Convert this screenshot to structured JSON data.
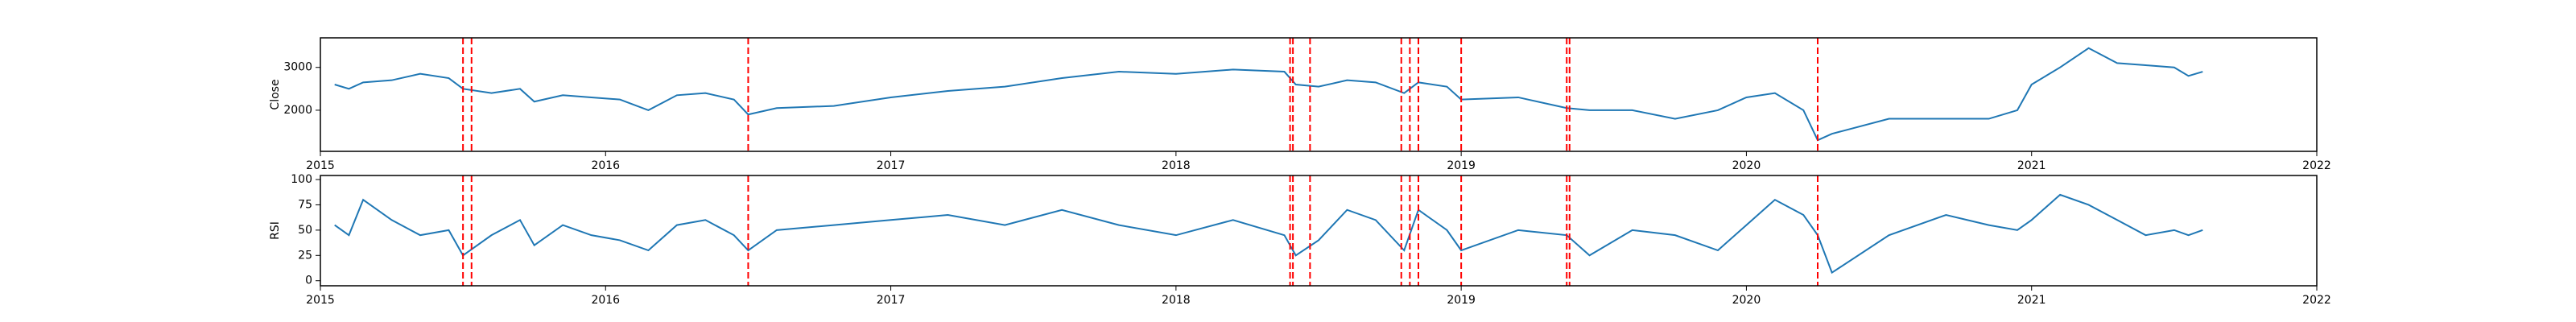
{
  "chart_data": [
    {
      "type": "line",
      "y_label": "Close",
      "x": [
        2015.05,
        2015.1,
        2015.15,
        2015.25,
        2015.35,
        2015.45,
        2015.5,
        2015.6,
        2015.7,
        2015.75,
        2015.85,
        2015.95,
        2016.05,
        2016.15,
        2016.25,
        2016.35,
        2016.45,
        2016.5,
        2016.6,
        2016.8,
        2017.0,
        2017.2,
        2017.4,
        2017.6,
        2017.8,
        2018.0,
        2018.2,
        2018.38,
        2018.42,
        2018.5,
        2018.6,
        2018.7,
        2018.8,
        2018.85,
        2018.95,
        2019.0,
        2019.2,
        2019.37,
        2019.45,
        2019.6,
        2019.75,
        2019.9,
        2020.0,
        2020.1,
        2020.2,
        2020.25,
        2020.3,
        2020.5,
        2020.7,
        2020.85,
        2020.95,
        2021.0,
        2021.1,
        2021.2,
        2021.3,
        2021.4,
        2021.5,
        2021.55,
        2021.6
      ],
      "series": [
        {
          "color": "#1f77b4",
          "values": [
            2600,
            2500,
            2650,
            2700,
            2850,
            2750,
            2500,
            2400,
            2500,
            2200,
            2350,
            2300,
            2250,
            2000,
            2350,
            2400,
            2250,
            1900,
            2050,
            2100,
            2300,
            2450,
            2550,
            2750,
            2900,
            2850,
            2950,
            2900,
            2600,
            2550,
            2700,
            2650,
            2400,
            2650,
            2550,
            2250,
            2300,
            2050,
            2000,
            2000,
            1800,
            2000,
            2300,
            2400,
            2000,
            1300,
            1450,
            1800,
            1800,
            1800,
            2000,
            2600,
            3000,
            3450,
            3100,
            3050,
            3000,
            2800,
            2900
          ]
        }
      ],
      "vlines": {
        "x": [
          2015.5,
          2015.53,
          2016.5,
          2018.4,
          2018.41,
          2018.47,
          2018.79,
          2018.82,
          2018.85,
          2019.0,
          2019.37,
          2019.38,
          2020.25
        ],
        "color": "red"
      },
      "xlim": [
        2015,
        2022
      ],
      "xticks": [
        2015,
        2016,
        2017,
        2018,
        2019,
        2020,
        2021,
        2022
      ],
      "ylim": [
        1040,
        3690
      ],
      "yticks": [
        2000,
        3000
      ]
    },
    {
      "type": "line",
      "y_label": "RSI",
      "x": [
        2015.05,
        2015.1,
        2015.15,
        2015.25,
        2015.35,
        2015.45,
        2015.5,
        2015.6,
        2015.7,
        2015.75,
        2015.85,
        2015.95,
        2016.05,
        2016.15,
        2016.25,
        2016.35,
        2016.45,
        2016.5,
        2016.6,
        2016.8,
        2017.0,
        2017.2,
        2017.4,
        2017.6,
        2017.8,
        2018.0,
        2018.2,
        2018.38,
        2018.42,
        2018.5,
        2018.6,
        2018.7,
        2018.8,
        2018.85,
        2018.95,
        2019.0,
        2019.2,
        2019.37,
        2019.45,
        2019.6,
        2019.75,
        2019.9,
        2020.0,
        2020.1,
        2020.2,
        2020.25,
        2020.3,
        2020.5,
        2020.7,
        2020.85,
        2020.95,
        2021.0,
        2021.1,
        2021.2,
        2021.3,
        2021.4,
        2021.5,
        2021.55,
        2021.6
      ],
      "series": [
        {
          "color": "#1f77b4",
          "values": [
            55,
            45,
            80,
            60,
            45,
            50,
            25,
            45,
            60,
            35,
            55,
            45,
            40,
            30,
            55,
            60,
            45,
            30,
            50,
            55,
            60,
            65,
            55,
            70,
            55,
            45,
            60,
            45,
            25,
            40,
            70,
            60,
            30,
            70,
            50,
            30,
            50,
            45,
            25,
            50,
            45,
            30,
            55,
            80,
            65,
            45,
            8,
            45,
            65,
            55,
            50,
            60,
            85,
            75,
            60,
            45,
            50,
            45,
            50
          ]
        }
      ],
      "vlines": {
        "x": [
          2015.5,
          2015.53,
          2016.5,
          2018.4,
          2018.41,
          2018.47,
          2018.79,
          2018.82,
          2018.85,
          2019.0,
          2019.37,
          2019.38,
          2020.25
        ],
        "color": "red"
      },
      "xlim": [
        2015,
        2022
      ],
      "xticks": [
        2015,
        2016,
        2017,
        2018,
        2019,
        2020,
        2021,
        2022
      ],
      "ylim": [
        -5,
        104
      ],
      "yticks": [
        0,
        25,
        50,
        75,
        100
      ]
    }
  ]
}
